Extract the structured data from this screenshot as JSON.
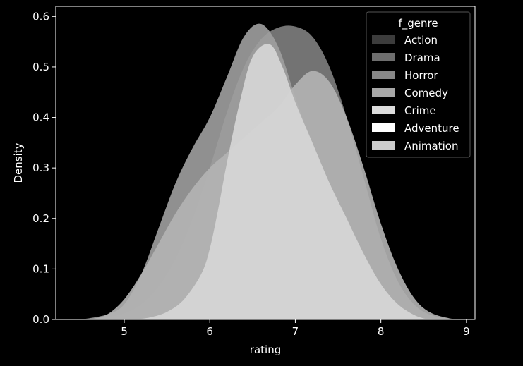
{
  "chart_data": {
    "type": "area",
    "xlabel": "rating",
    "ylabel": "Density",
    "xlim": [
      4.2,
      9.1
    ],
    "ylim": [
      0,
      0.62
    ],
    "xticks": [
      5,
      6,
      7,
      8,
      9
    ],
    "yticks": [
      0.0,
      0.1,
      0.2,
      0.3,
      0.4,
      0.5,
      0.6
    ],
    "grid": false,
    "legend": {
      "title": "f_genre",
      "placement": "top-right",
      "items": [
        "Action",
        "Drama",
        "Horror",
        "Comedy",
        "Crime",
        "Adventure",
        "Animation"
      ]
    },
    "series": [
      {
        "name": "Drama",
        "color": "#808080",
        "opacity": 0.9,
        "x": [
          4.5,
          4.8,
          5.0,
          5.2,
          5.4,
          5.6,
          5.8,
          6.0,
          6.2,
          6.4,
          6.6,
          6.8,
          7.0,
          7.2,
          7.4,
          7.6,
          7.8,
          8.0,
          8.2,
          8.4,
          8.6,
          8.87
        ],
        "y": [
          0.0,
          0.005,
          0.012,
          0.03,
          0.065,
          0.12,
          0.2,
          0.3,
          0.41,
          0.5,
          0.555,
          0.578,
          0.58,
          0.56,
          0.5,
          0.4,
          0.28,
          0.16,
          0.075,
          0.028,
          0.008,
          0.0
        ]
      },
      {
        "name": "Horror",
        "color": "#a0a0a0",
        "opacity": 0.9,
        "x": [
          4.5,
          4.8,
          5.0,
          5.2,
          5.4,
          5.6,
          5.8,
          6.0,
          6.2,
          6.4,
          6.6,
          6.8,
          7.0,
          7.2,
          7.4,
          7.6,
          7.8,
          8.0,
          8.2,
          8.4,
          8.6,
          8.87
        ],
        "y": [
          0.0,
          0.01,
          0.03,
          0.09,
          0.18,
          0.27,
          0.34,
          0.4,
          0.48,
          0.56,
          0.585,
          0.54,
          0.44,
          0.34,
          0.24,
          0.16,
          0.09,
          0.045,
          0.02,
          0.006,
          0.002,
          0.0
        ]
      },
      {
        "name": "Comedy",
        "color": "#b4b4b4",
        "opacity": 0.9,
        "x": [
          4.6,
          4.8,
          5.0,
          5.2,
          5.4,
          5.6,
          5.8,
          6.0,
          6.2,
          6.4,
          6.6,
          6.8,
          7.0,
          7.2,
          7.4,
          7.6,
          7.8,
          8.0,
          8.2,
          8.4,
          8.6,
          8.87
        ],
        "y": [
          0.0,
          0.01,
          0.04,
          0.09,
          0.15,
          0.21,
          0.26,
          0.3,
          0.33,
          0.36,
          0.39,
          0.42,
          0.465,
          0.492,
          0.47,
          0.4,
          0.3,
          0.19,
          0.1,
          0.04,
          0.012,
          0.0
        ]
      },
      {
        "name": "Crime",
        "color": "#d6d6d6",
        "opacity": 0.92,
        "x": [
          5.12,
          5.3,
          5.5,
          5.7,
          5.9,
          6.0,
          6.1,
          6.2,
          6.35,
          6.5,
          6.7,
          6.85,
          7.0,
          7.2,
          7.4,
          7.6,
          7.8,
          8.0,
          8.2,
          8.4,
          8.55
        ],
        "y": [
          0.0,
          0.004,
          0.015,
          0.04,
          0.09,
          0.14,
          0.22,
          0.31,
          0.43,
          0.52,
          0.545,
          0.5,
          0.43,
          0.35,
          0.27,
          0.2,
          0.13,
          0.07,
          0.03,
          0.008,
          0.0
        ]
      }
    ]
  }
}
